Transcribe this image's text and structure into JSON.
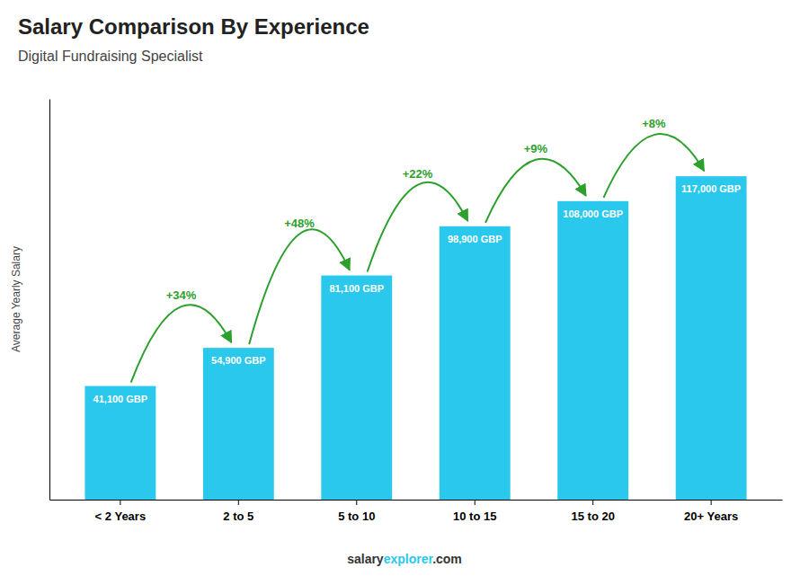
{
  "chart_data": {
    "type": "bar",
    "title": "Salary Comparison By Experience",
    "subtitle": "Digital Fundraising Specialist",
    "y_label": "Average Yearly Salary",
    "categories": [
      "< 2 Years",
      "2 to 5",
      "5 to 10",
      "10 to 15",
      "15 to 20",
      "20+ Years"
    ],
    "values": [
      41100,
      54900,
      81100,
      98900,
      108000,
      117000
    ],
    "value_labels": [
      "41,100 GBP",
      "54,900 GBP",
      "81,100 GBP",
      "98,900 GBP",
      "108,000 GBP",
      "117,000 GBP"
    ],
    "data_labels": true,
    "annotations": [
      "+34%",
      "+48%",
      "+22%",
      "+9%",
      "+8%"
    ],
    "footer": [
      "salary",
      "explorer",
      ".com"
    ],
    "color": "#29c8ec",
    "ylim": [
      0,
      145000
    ],
    "tick_labels": "x",
    "grid": false
  }
}
